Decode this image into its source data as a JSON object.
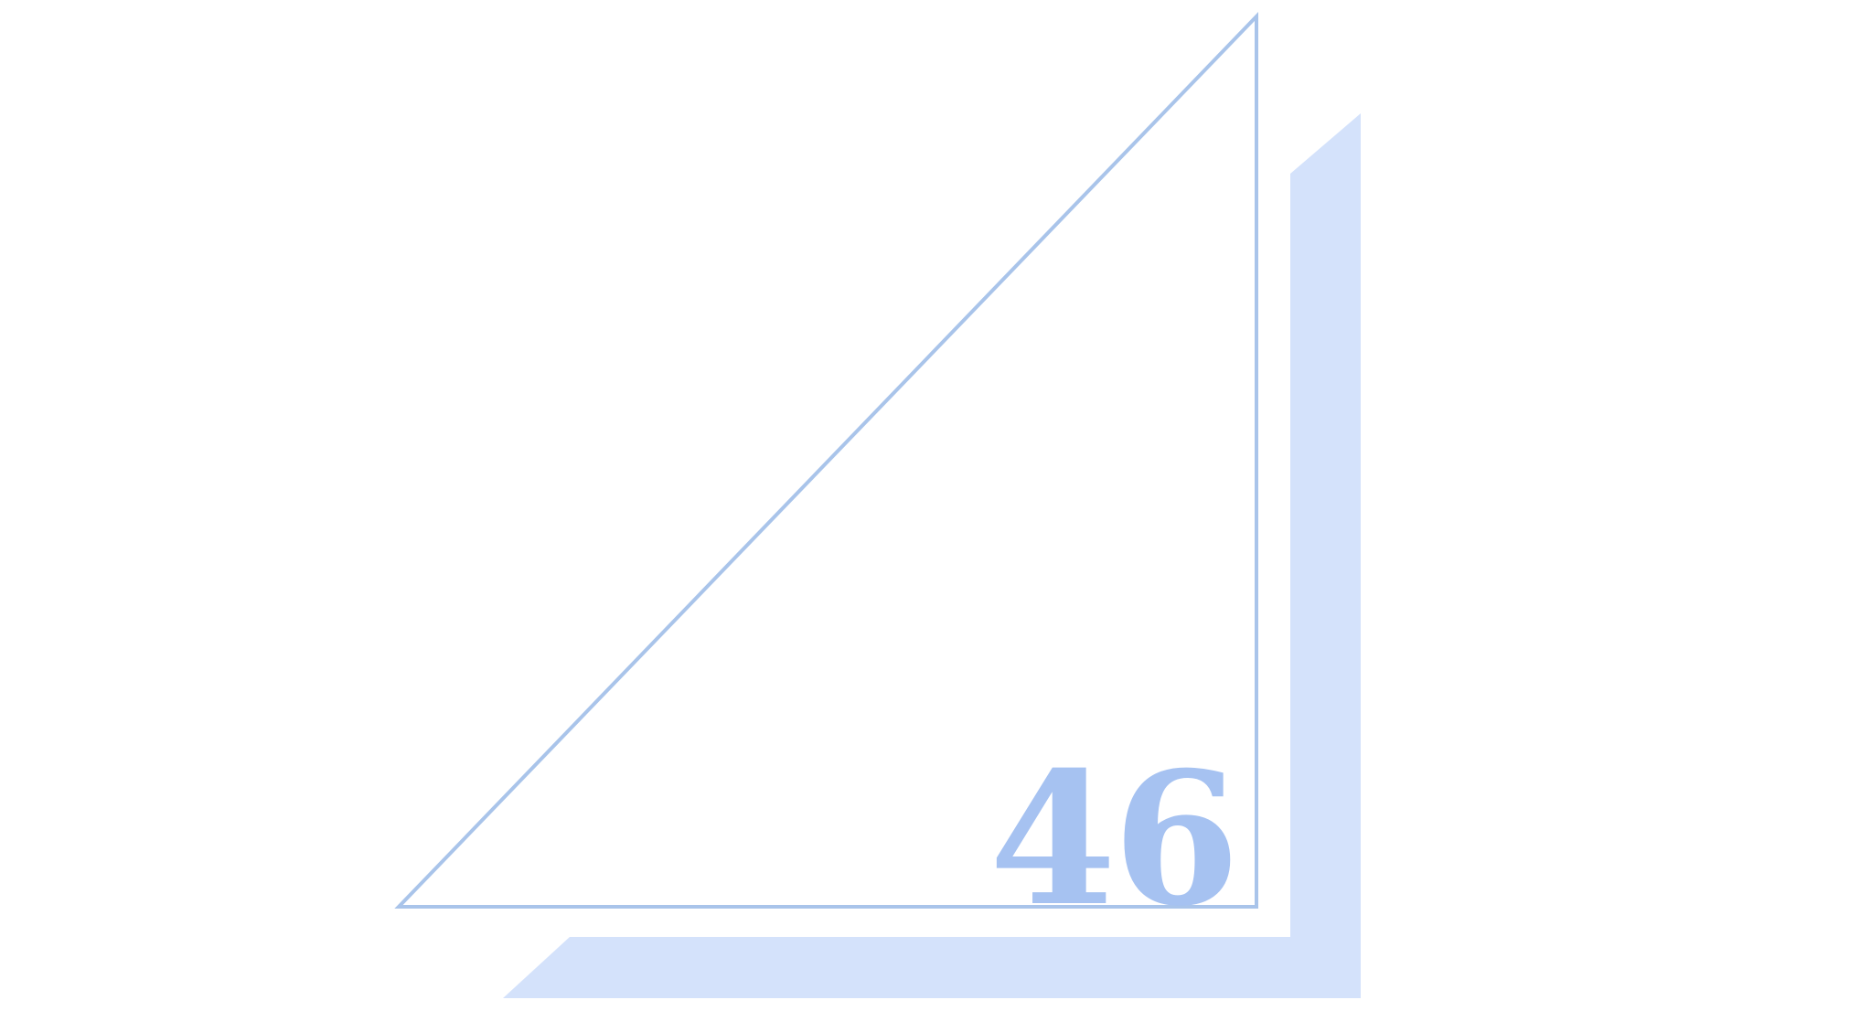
{
  "logo": {
    "number": "46",
    "colors": {
      "background": "#ffffff",
      "outline": "#a9c4ea",
      "shadow": "#d4e2fb",
      "numeral": "#a6c2f1"
    }
  }
}
